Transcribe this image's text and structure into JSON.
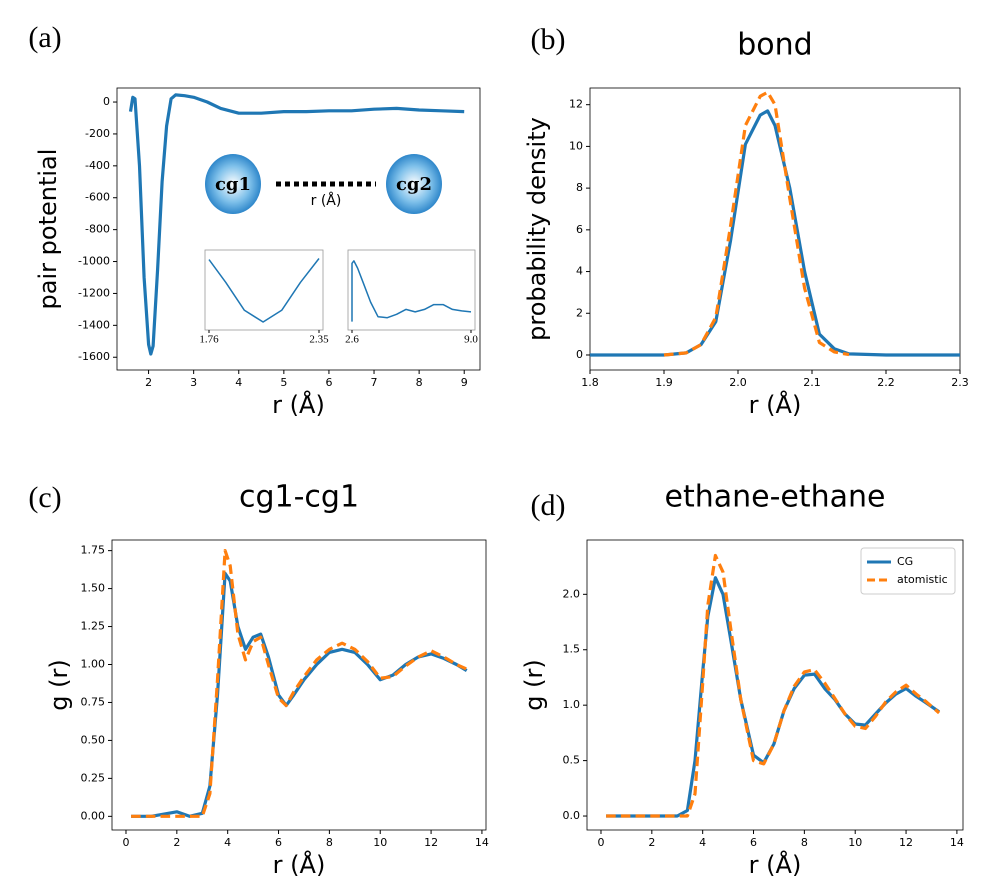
{
  "chart_data": [
    {
      "type": "line",
      "label": "(a)",
      "xlabel": "r (Å)",
      "ylabel": "pair potential",
      "xlim": [
        1.3,
        9.35
      ],
      "ylim": [
        -1680,
        88
      ],
      "xticks": [
        2,
        3,
        4,
        5,
        6,
        7,
        8,
        9
      ],
      "yticks": [
        0,
        -200,
        -400,
        -600,
        -800,
        -1000,
        -1200,
        -1400,
        -1600
      ],
      "x": [
        1.6,
        1.65,
        1.7,
        1.8,
        1.9,
        2.0,
        2.05,
        2.1,
        2.2,
        2.3,
        2.4,
        2.5,
        2.6,
        2.8,
        3.0,
        3.3,
        3.6,
        4.0,
        4.5,
        5.0,
        5.5,
        6.0,
        6.5,
        7.0,
        7.5,
        8.0,
        8.5,
        9.0
      ],
      "series": [
        {
          "color": "#1f77b4",
          "linestyle": "solid",
          "values": [
            -60,
            30,
            20,
            -400,
            -1100,
            -1520,
            -1580,
            -1530,
            -1050,
            -500,
            -150,
            20,
            45,
            40,
            30,
            0,
            -40,
            -70,
            -70,
            -60,
            -60,
            -55,
            -55,
            -45,
            -40,
            -50,
            -55,
            -60
          ]
        }
      ],
      "diagram": {
        "left": "cg1",
        "right": "cg2",
        "distance": "r (Å)"
      },
      "insets": [
        {
          "type": "line",
          "xlim": [
            1.76,
            2.35
          ],
          "ylim": [
            -1620,
            -280
          ],
          "xticks": [
            1.76,
            2.35
          ],
          "x": [
            1.76,
            1.85,
            1.95,
            2.05,
            2.15,
            2.25,
            2.35
          ],
          "series": [
            {
              "color": "#1f77b4",
              "linestyle": "solid",
              "values": [
                -350,
                -800,
                -1350,
                -1580,
                -1350,
                -800,
                -330
              ]
            }
          ]
        },
        {
          "type": "line",
          "xlim": [
            2.6,
            9.0
          ],
          "ylim": [
            -85,
            55
          ],
          "xticks": [
            2.6,
            {
              "value": 9.0,
              "label": "9.0"
            }
          ],
          "x": [
            2.6,
            2.6,
            2.7,
            2.9,
            3.2,
            3.6,
            4.0,
            4.5,
            5.0,
            5.5,
            6.0,
            6.5,
            7.0,
            7.5,
            8.0,
            8.5,
            9.0
          ],
          "series": [
            {
              "color": "#1f77b4",
              "linestyle": "solid",
              "values": [
                -80,
                40,
                45,
                30,
                0,
                -40,
                -70,
                -72,
                -65,
                -55,
                -60,
                -55,
                -45,
                -45,
                -55,
                -58,
                -60
              ]
            }
          ]
        }
      ]
    },
    {
      "type": "line",
      "label": "(b)",
      "title": "bond",
      "xlabel": "r (Å)",
      "ylabel": "probability density",
      "xlim": [
        1.8,
        2.3
      ],
      "ylim": [
        -0.72,
        12.8
      ],
      "xticks": [
        1.8,
        1.9,
        {
          "value": 2.0,
          "label": "2.0"
        },
        2.1,
        2.2,
        2.3
      ],
      "yticks": [
        0,
        2,
        4,
        6,
        8,
        10,
        12
      ],
      "x": [
        1.8,
        1.9,
        1.93,
        1.95,
        1.97,
        1.99,
        2.01,
        2.03,
        2.04,
        2.05,
        2.07,
        2.09,
        2.11,
        2.13,
        2.15,
        2.2,
        2.3
      ],
      "series": [
        {
          "color": "#1f77b4",
          "linestyle": "solid",
          "values": [
            0,
            0,
            0.1,
            0.5,
            1.6,
            5.5,
            10.1,
            11.5,
            11.7,
            11.0,
            8.0,
            4.0,
            1.0,
            0.3,
            0.05,
            0,
            0
          ]
        },
        {
          "color": "#ff7f0e",
          "linestyle": "dashed",
          "values": [
            null,
            0,
            0.1,
            0.5,
            1.8,
            6.2,
            11.0,
            12.4,
            12.6,
            12.0,
            7.5,
            3.2,
            0.6,
            0.15,
            0.02,
            null,
            null
          ]
        }
      ]
    },
    {
      "type": "line",
      "label": "(c)",
      "title": "cg1-cg1",
      "xlabel": "r (Å)",
      "ylabel": "g (r)",
      "xlim": [
        -0.55,
        14.16
      ],
      "ylim": [
        -0.09,
        1.82
      ],
      "xticks": [
        0,
        2,
        4,
        6,
        8,
        10,
        12,
        14
      ],
      "yticks": [
        {
          "value": 0,
          "label": "0.00"
        },
        {
          "value": 0.25,
          "label": "0.25"
        },
        {
          "value": 0.5,
          "label": "0.50"
        },
        {
          "value": 0.75,
          "label": "0.75"
        },
        {
          "value": 1,
          "label": "1.00"
        },
        {
          "value": 1.25,
          "label": "1.25"
        },
        {
          "value": 1.5,
          "label": "1.50"
        },
        {
          "value": 1.75,
          "label": "1.75"
        }
      ],
      "x": [
        0.2,
        1,
        2,
        2.5,
        3,
        3.3,
        3.6,
        3.9,
        4.1,
        4.4,
        4.7,
        5.0,
        5.3,
        5.6,
        6.0,
        6.3,
        6.6,
        7,
        7.5,
        8,
        8.5,
        9,
        9.5,
        10,
        10.5,
        11,
        11.5,
        12,
        12.5,
        13,
        13.4
      ],
      "series": [
        {
          "color": "#1f77b4",
          "linestyle": "solid",
          "values": [
            0,
            0,
            0.03,
            0,
            0.02,
            0.2,
            0.8,
            1.6,
            1.55,
            1.25,
            1.1,
            1.18,
            1.2,
            1.05,
            0.8,
            0.73,
            0.8,
            0.9,
            1.0,
            1.08,
            1.1,
            1.08,
            1.0,
            0.9,
            0.93,
            1.0,
            1.05,
            1.07,
            1.04,
            1.0,
            0.96
          ]
        },
        {
          "color": "#ff7f0e",
          "linestyle": "dashed",
          "values": [
            0,
            0,
            0,
            0,
            0,
            0.15,
            0.9,
            1.75,
            1.65,
            1.2,
            1.03,
            1.15,
            1.18,
            1.0,
            0.78,
            0.73,
            0.82,
            0.92,
            1.03,
            1.1,
            1.14,
            1.1,
            1.02,
            0.91,
            0.92,
            0.99,
            1.05,
            1.09,
            1.05,
            1.0,
            0.97
          ]
        }
      ]
    },
    {
      "type": "line",
      "label": "(d)",
      "title": "ethane-ethane",
      "xlabel": "r (Å)",
      "ylabel": "g (r)",
      "xlim": [
        -0.55,
        14.24
      ],
      "ylim": [
        -0.126,
        2.49
      ],
      "xticks": [
        0,
        2,
        4,
        6,
        8,
        10,
        12,
        14
      ],
      "yticks": [
        {
          "value": 0,
          "label": "0.0"
        },
        0.5,
        {
          "value": 1,
          "label": "1.0"
        },
        1.5,
        {
          "value": 2,
          "label": "2.0"
        }
      ],
      "legend": "upper right",
      "x": [
        0.2,
        1,
        2,
        3,
        3.4,
        3.7,
        4.0,
        4.2,
        4.5,
        4.8,
        5.1,
        5.5,
        6.0,
        6.4,
        6.8,
        7.2,
        7.6,
        8,
        8.4,
        8.8,
        9.2,
        9.6,
        10,
        10.4,
        10.8,
        11.2,
        11.6,
        12,
        12.4,
        12.8,
        13.3
      ],
      "series": [
        {
          "name": "CG",
          "color": "#1f77b4",
          "linestyle": "solid",
          "values": [
            0,
            0,
            0,
            0,
            0.05,
            0.5,
            1.3,
            1.8,
            2.15,
            2.0,
            1.6,
            1.05,
            0.55,
            0.48,
            0.65,
            0.95,
            1.15,
            1.27,
            1.28,
            1.15,
            1.05,
            0.92,
            0.83,
            0.82,
            0.92,
            1.02,
            1.1,
            1.15,
            1.08,
            1.02,
            0.94
          ]
        },
        {
          "name": "atomistic",
          "color": "#ff7f0e",
          "linestyle": "dashed",
          "values": [
            0,
            0,
            0,
            0,
            0,
            0.2,
            1.2,
            1.9,
            2.35,
            2.2,
            1.7,
            1.05,
            0.5,
            0.47,
            0.65,
            0.95,
            1.17,
            1.3,
            1.32,
            1.2,
            1.06,
            0.92,
            0.81,
            0.79,
            0.9,
            1.03,
            1.12,
            1.18,
            1.1,
            1.03,
            0.93
          ]
        }
      ]
    }
  ]
}
